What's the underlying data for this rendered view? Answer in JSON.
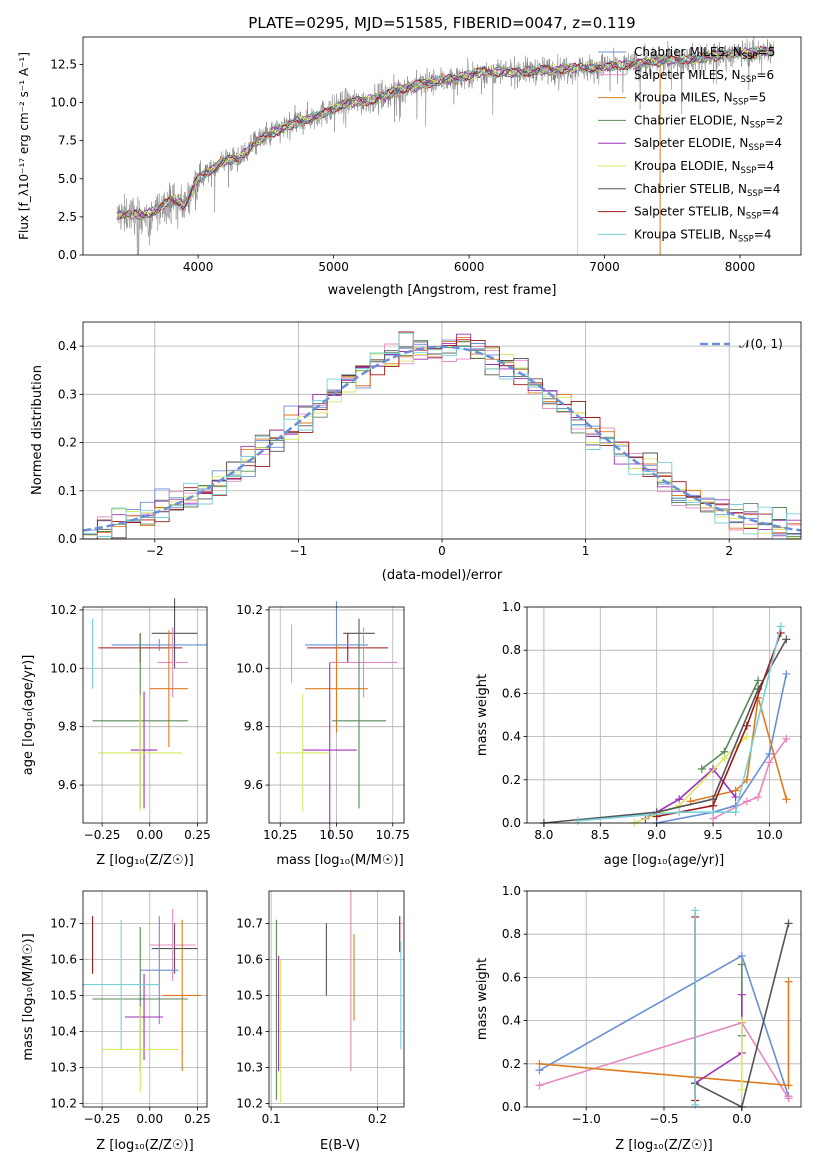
{
  "colors": {
    "chabrier_miles": "#6a8fd8",
    "salpeter_miles": "#e888c0",
    "kroupa_miles": "#e07b20",
    "chabrier_elodie": "#5a8a5a",
    "salpeter_elodie": "#a030b8",
    "kroupa_elodie": "#d8e860",
    "chabrier_stelib": "#555555",
    "salpeter_stelib": "#a01818",
    "kroupa_stelib": "#78d0d8",
    "data": "#808080"
  },
  "chart_data": [
    {
      "type": "line",
      "title": "PLATE=0295, MJD=51585, FIBERID=0047, z=0.119",
      "xlabel": "wavelength [Angstrom, rest frame]",
      "ylabel": "Flux [f_λ10⁻¹⁷ erg cm⁻² s⁻¹ A⁻¹]",
      "xlim": [
        3150,
        8450
      ],
      "ylim": [
        0,
        14.3
      ],
      "xticks": [
        "4000",
        "5000",
        "6000",
        "7000",
        "8000"
      ],
      "yticks": [
        "0.0",
        "2.5",
        "5.0",
        "7.5",
        "10.0",
        "12.5"
      ],
      "legend_position": "top-right",
      "legend": [
        {
          "label": "Chabrier MILES, N",
          "sub": "SSP",
          "suffix": "=5"
        },
        {
          "label": "Salpeter MILES, N",
          "sub": "SSP",
          "suffix": "=6"
        },
        {
          "label": "Kroupa MILES, N",
          "sub": "SSP",
          "suffix": "=5"
        },
        {
          "label": "Chabrier ELODIE, N",
          "sub": "SSP",
          "suffix": "=2"
        },
        {
          "label": "Salpeter ELODIE, N",
          "sub": "SSP",
          "suffix": "=4"
        },
        {
          "label": "Kroupa ELODIE, N",
          "sub": "SSP",
          "suffix": "=4"
        },
        {
          "label": "Chabrier STELIB, N",
          "sub": "SSP",
          "suffix": "=4"
        },
        {
          "label": "Salpeter STELIB, N",
          "sub": "SSP",
          "suffix": "=4"
        },
        {
          "label": "Kroupa STELIB, N",
          "sub": "SSP",
          "suffix": "=4"
        }
      ],
      "continuum": {
        "x": [
          3400,
          3500,
          3600,
          3700,
          3800,
          3900,
          4000,
          4100,
          4200,
          4300,
          4400,
          4500,
          4700,
          4900,
          5100,
          5300,
          5500,
          5700,
          5900,
          6100,
          6300,
          6500,
          6700,
          6900,
          7100,
          7300,
          7500,
          7700,
          7900,
          8100,
          8250
        ],
        "y": [
          2.6,
          2.7,
          2.6,
          3.0,
          3.6,
          3.3,
          5.0,
          5.6,
          6.2,
          6.3,
          7.2,
          7.8,
          8.6,
          9.2,
          10.0,
          10.2,
          10.9,
          11.3,
          11.6,
          12.0,
          12.0,
          12.1,
          12.2,
          12.3,
          12.4,
          12.6,
          12.8,
          12.9,
          13.2,
          13.3,
          13.4
        ]
      }
    },
    {
      "type": "bar",
      "xlabel": "(data-model)/error",
      "ylabel": "Normed distribution",
      "xlim": [
        -2.5,
        2.5
      ],
      "ylim": [
        0,
        0.45
      ],
      "xticks": [
        "−2",
        "−1",
        "0",
        "1",
        "2"
      ],
      "yticks": [
        "0.0",
        "0.1",
        "0.2",
        "0.3",
        "0.4"
      ],
      "legend": [
        "𝒩(0, 1)"
      ],
      "legend_position": "top-right",
      "bin_width": 0.1,
      "reference_curve": "normal(0,1)"
    },
    {
      "type": "scatter",
      "xlabel": "Z [log₁₀(Z/Z☉)]",
      "ylabel": "age  [log₁₀(age/yr)]",
      "xlim": [
        -0.35,
        0.3
      ],
      "ylim": [
        9.47,
        10.21
      ],
      "xticks": [
        "−0.25",
        "0.00",
        "0.25"
      ],
      "yticks": [
        "9.6",
        "9.8",
        "10.0",
        "10.2"
      ]
    },
    {
      "type": "scatter",
      "ylabel": "",
      "xlabel": "mass [log₁₀(M/M☉)]",
      "xlim": [
        10.2,
        10.8
      ],
      "ylim": [
        9.47,
        10.21
      ],
      "xticks": [
        "10.25",
        "10.50",
        "10.75"
      ],
      "yticks": [
        "9.6",
        "9.8",
        "10.0",
        "10.2"
      ]
    },
    {
      "type": "line",
      "xlabel": "age  [log₁₀(age/yr)]",
      "ylabel": "mass weight",
      "xlim": [
        7.85,
        10.28
      ],
      "ylim": [
        0,
        1
      ],
      "xticks": [
        "8.0",
        "8.5",
        "9.0",
        "9.5",
        "10.0"
      ],
      "yticks": [
        "0.0",
        "0.2",
        "0.4",
        "0.6",
        "0.8",
        "1.0"
      ],
      "series": [
        {
          "key": "chabrier_miles",
          "x": [
            9.0,
            9.5,
            9.7,
            10.0,
            10.15
          ],
          "y": [
            0.0,
            0.05,
            0.08,
            0.32,
            0.69
          ]
        },
        {
          "key": "salpeter_miles",
          "x": [
            9.5,
            9.8,
            9.9,
            10.0,
            10.15
          ],
          "y": [
            0.02,
            0.1,
            0.12,
            0.28,
            0.39
          ]
        },
        {
          "key": "kroupa_miles",
          "x": [
            9.3,
            9.7,
            9.8,
            9.9,
            10.15
          ],
          "y": [
            0.1,
            0.15,
            0.2,
            0.58,
            0.11
          ]
        },
        {
          "key": "chabrier_elodie",
          "x": [
            9.4,
            9.6,
            9.9
          ],
          "y": [
            0.25,
            0.33,
            0.66
          ]
        },
        {
          "key": "salpeter_elodie",
          "x": [
            8.9,
            9.2,
            9.5,
            9.7
          ],
          "y": [
            0.02,
            0.11,
            0.25,
            0.12
          ]
        },
        {
          "key": "kroupa_elodie",
          "x": [
            8.8,
            9.2,
            9.6,
            9.8
          ],
          "y": [
            0.0,
            0.08,
            0.3,
            0.4
          ]
        },
        {
          "key": "chabrier_stelib",
          "x": [
            8.0,
            9.0,
            9.5,
            9.9,
            10.15
          ],
          "y": [
            0.0,
            0.05,
            0.11,
            0.62,
            0.85
          ]
        },
        {
          "key": "salpeter_stelib",
          "x": [
            9.0,
            9.5,
            9.8,
            10.1
          ],
          "y": [
            0.03,
            0.08,
            0.45,
            0.88
          ]
        },
        {
          "key": "kroupa_stelib",
          "x": [
            8.3,
            9.2,
            9.7,
            10.1
          ],
          "y": [
            0.01,
            0.05,
            0.05,
            0.91
          ]
        }
      ]
    },
    {
      "type": "scatter",
      "xlabel": "Z [log₁₀(Z/Z☉)]",
      "ylabel": "mass [log₁₀(M/M☉)]",
      "xlim": [
        -0.35,
        0.3
      ],
      "ylim": [
        10.19,
        10.79
      ],
      "xticks": [
        "−0.25",
        "0.00",
        "0.25"
      ],
      "yticks": [
        "10.2",
        "10.3",
        "10.4",
        "10.5",
        "10.6",
        "10.7"
      ]
    },
    {
      "type": "scatter",
      "xlabel": "E(B-V)",
      "ylabel": "",
      "xlim": [
        0.098,
        0.225
      ],
      "ylim": [
        10.19,
        10.79
      ],
      "xticks": [
        "0.1",
        "0.2"
      ],
      "yticks": [
        "10.2",
        "10.3",
        "10.4",
        "10.5",
        "10.6",
        "10.7"
      ]
    },
    {
      "type": "line",
      "xlabel": "Z [log₁₀(Z/Z☉)]",
      "ylabel": "mass weight",
      "xlim": [
        -1.38,
        0.38
      ],
      "ylim": [
        0,
        1
      ],
      "xticks": [
        "−1.0",
        "−0.5",
        "0.0"
      ],
      "yticks": [
        "0.0",
        "0.2",
        "0.4",
        "0.6",
        "0.8",
        "1.0"
      ],
      "series": [
        {
          "key": "chabrier_miles",
          "x": [
            -1.3,
            0.0,
            0.3
          ],
          "y": [
            0.17,
            0.7,
            0.05
          ]
        },
        {
          "key": "salpeter_miles",
          "x": [
            -1.3,
            0.0,
            0.3
          ],
          "y": [
            0.1,
            0.39,
            0.04
          ]
        },
        {
          "key": "kroupa_miles",
          "x": [
            -1.3,
            0.3,
            0.3
          ],
          "y": [
            0.2,
            0.1,
            0.58
          ]
        },
        {
          "key": "chabrier_elodie",
          "x": [
            0.0,
            0.0
          ],
          "y": [
            0.33,
            0.66
          ]
        },
        {
          "key": "salpeter_elodie",
          "x": [
            -0.3,
            0.0,
            0.0
          ],
          "y": [
            0.11,
            0.25,
            0.52
          ]
        },
        {
          "key": "kroupa_elodie",
          "x": [
            0.0,
            0.0
          ],
          "y": [
            0.08,
            0.4
          ]
        },
        {
          "key": "chabrier_stelib",
          "x": [
            -0.3,
            0.0,
            0.3
          ],
          "y": [
            0.11,
            0.0,
            0.85
          ]
        },
        {
          "key": "salpeter_stelib",
          "x": [
            -0.3,
            -0.3
          ],
          "y": [
            0.03,
            0.88
          ]
        },
        {
          "key": "kroupa_stelib",
          "x": [
            -0.3,
            -0.3
          ],
          "y": [
            0.01,
            0.91
          ]
        }
      ]
    }
  ]
}
